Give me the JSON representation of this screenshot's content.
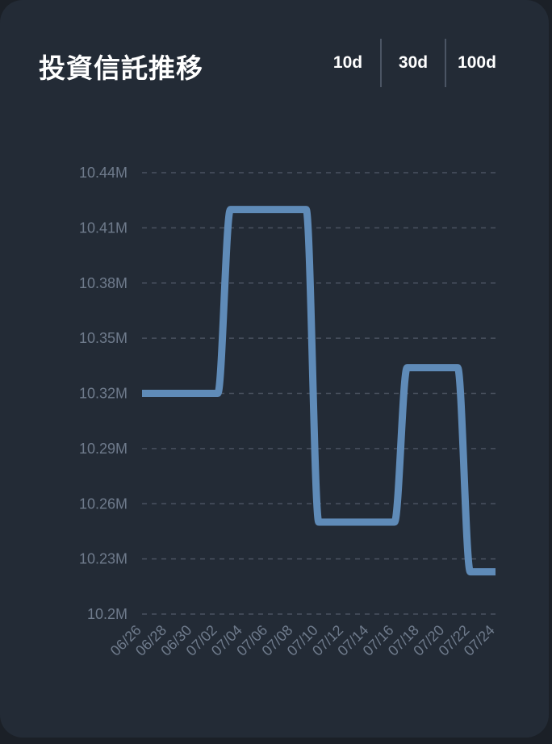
{
  "header": {
    "title": "投資信託推移"
  },
  "range_tabs": [
    {
      "label": "10d"
    },
    {
      "label": "30d"
    },
    {
      "label": "100d"
    }
  ],
  "colors": {
    "background": "#232b36",
    "line": "#5f8bb8",
    "tick_text": "#6f7b8c",
    "grid": "#4a5260"
  },
  "chart_data": {
    "type": "line",
    "title": "投資信託推移",
    "xlabel": "",
    "ylabel": "",
    "ylim": [
      10.2,
      10.44
    ],
    "y_ticks": [
      "10.2M",
      "10.23M",
      "10.26M",
      "10.29M",
      "10.32M",
      "10.35M",
      "10.38M",
      "10.41M",
      "10.44M"
    ],
    "y_tick_values": [
      10.2,
      10.23,
      10.26,
      10.29,
      10.32,
      10.35,
      10.38,
      10.41,
      10.44
    ],
    "x_ticks": [
      "06/26",
      "06/28",
      "06/30",
      "07/02",
      "07/04",
      "07/06",
      "07/08",
      "07/10",
      "07/12",
      "07/14",
      "07/16",
      "07/18",
      "07/20",
      "07/22",
      "07/24"
    ],
    "grid": true,
    "legend": "none",
    "series": [
      {
        "x": [
          "06/26",
          "06/27",
          "06/28",
          "06/29",
          "06/30",
          "07/01",
          "07/02",
          "07/03",
          "07/04",
          "07/05",
          "07/06",
          "07/07",
          "07/08",
          "07/09",
          "07/10",
          "07/11",
          "07/12",
          "07/13",
          "07/14",
          "07/15",
          "07/16",
          "07/17",
          "07/18",
          "07/19",
          "07/20",
          "07/21",
          "07/22",
          "07/23",
          "07/24"
        ],
        "values": [
          10.32,
          10.32,
          10.32,
          10.32,
          10.32,
          10.32,
          10.32,
          10.42,
          10.42,
          10.42,
          10.42,
          10.42,
          10.42,
          10.42,
          10.25,
          10.25,
          10.25,
          10.25,
          10.25,
          10.25,
          10.25,
          10.334,
          10.334,
          10.334,
          10.334,
          10.334,
          10.223,
          10.223,
          10.223
        ]
      }
    ]
  }
}
